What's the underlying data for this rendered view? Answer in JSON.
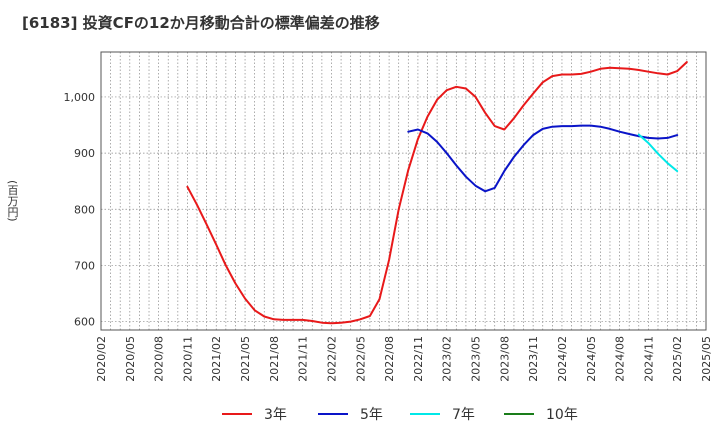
{
  "chart_data": {
    "type": "line",
    "title": "[6183]  投資CFの12か月移動合計の標準偏差の推移",
    "ylabel": "(百万円)",
    "xlabel": "",
    "ylim": [
      585,
      1080
    ],
    "yticks": [
      600,
      700,
      800,
      900,
      1000
    ],
    "ytick_labels": [
      "600",
      "700",
      "800",
      "900",
      "1,000"
    ],
    "x_start": "2020-02",
    "x_end": "2025-05",
    "xtick_labels": [
      "2020/02",
      "2020/05",
      "2020/08",
      "2020/11",
      "2021/02",
      "2021/05",
      "2021/08",
      "2021/11",
      "2022/02",
      "2022/05",
      "2022/08",
      "2022/11",
      "2023/02",
      "2023/05",
      "2023/08",
      "2023/11",
      "2024/02",
      "2024/05",
      "2024/08",
      "2024/11",
      "2025/02",
      "2025/05"
    ],
    "grid": true,
    "legend_position": "bottom",
    "series": [
      {
        "name": "3年",
        "color": "#e8191a",
        "start": "2020-11",
        "values": [
          840,
          808,
          773,
          737,
          700,
          668,
          641,
          620,
          609,
          604,
          603,
          603,
          603,
          601,
          598,
          597,
          598,
          600,
          604,
          610,
          640,
          710,
          800,
          870,
          925,
          965,
          995,
          1012,
          1018,
          1015,
          1000,
          972,
          948,
          942,
          962,
          985,
          1006,
          1026,
          1037,
          1040,
          1040,
          1041,
          1045,
          1050,
          1052,
          1051,
          1050,
          1048,
          1045,
          1042,
          1040,
          1046,
          1062
        ]
      },
      {
        "name": "5年",
        "color": "#0a14c8",
        "start": "2022-10",
        "values": [
          938,
          942,
          935,
          920,
          900,
          878,
          858,
          842,
          832,
          838,
          868,
          893,
          914,
          932,
          943,
          947,
          948,
          948,
          949,
          949,
          947,
          943,
          938,
          934,
          930,
          927,
          926,
          927,
          932
        ]
      },
      {
        "name": "7年",
        "color": "#00e8e8",
        "start": "2024-10",
        "values": [
          933,
          918,
          899,
          882,
          868
        ]
      },
      {
        "name": "10年",
        "color": "#1a7d1a",
        "start": "2025-02",
        "values": []
      }
    ]
  }
}
